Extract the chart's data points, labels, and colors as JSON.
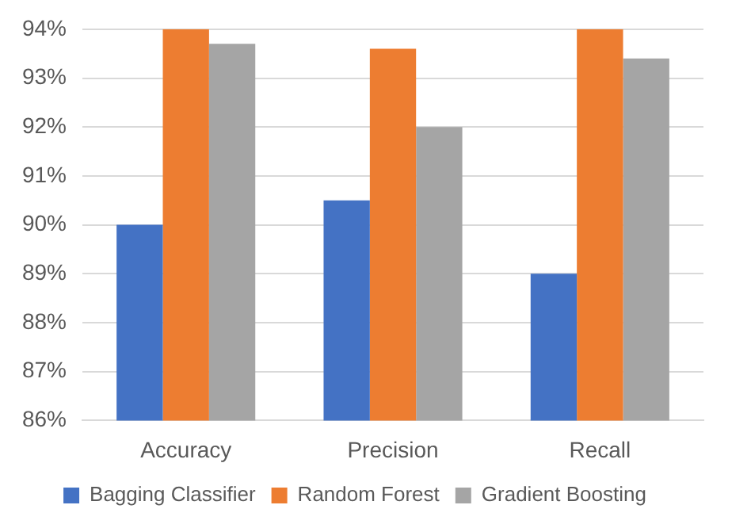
{
  "chart_data": {
    "type": "bar",
    "categories": [
      "Accuracy",
      "Precision",
      "Recall"
    ],
    "series": [
      {
        "name": "Bagging Classifier",
        "color": "#4472c4",
        "values": [
          90,
          90.5,
          89
        ]
      },
      {
        "name": "Random Forest",
        "color": "#ed7d31",
        "values": [
          94,
          93.6,
          94
        ]
      },
      {
        "name": "Gradient Boosting",
        "color": "#a5a5a5",
        "values": [
          93.7,
          92,
          93.4
        ]
      }
    ],
    "ylim": [
      86,
      94
    ],
    "yticks": [
      {
        "value": 86,
        "label": "86%"
      },
      {
        "value": 87,
        "label": "87%"
      },
      {
        "value": 88,
        "label": "88%"
      },
      {
        "value": 89,
        "label": "89%"
      },
      {
        "value": 90,
        "label": "90%"
      },
      {
        "value": 91,
        "label": "91%"
      },
      {
        "value": 92,
        "label": "92%"
      },
      {
        "value": 93,
        "label": "93%"
      },
      {
        "value": 94,
        "label": "94%"
      }
    ],
    "grid": "y",
    "legend": "bottom"
  }
}
